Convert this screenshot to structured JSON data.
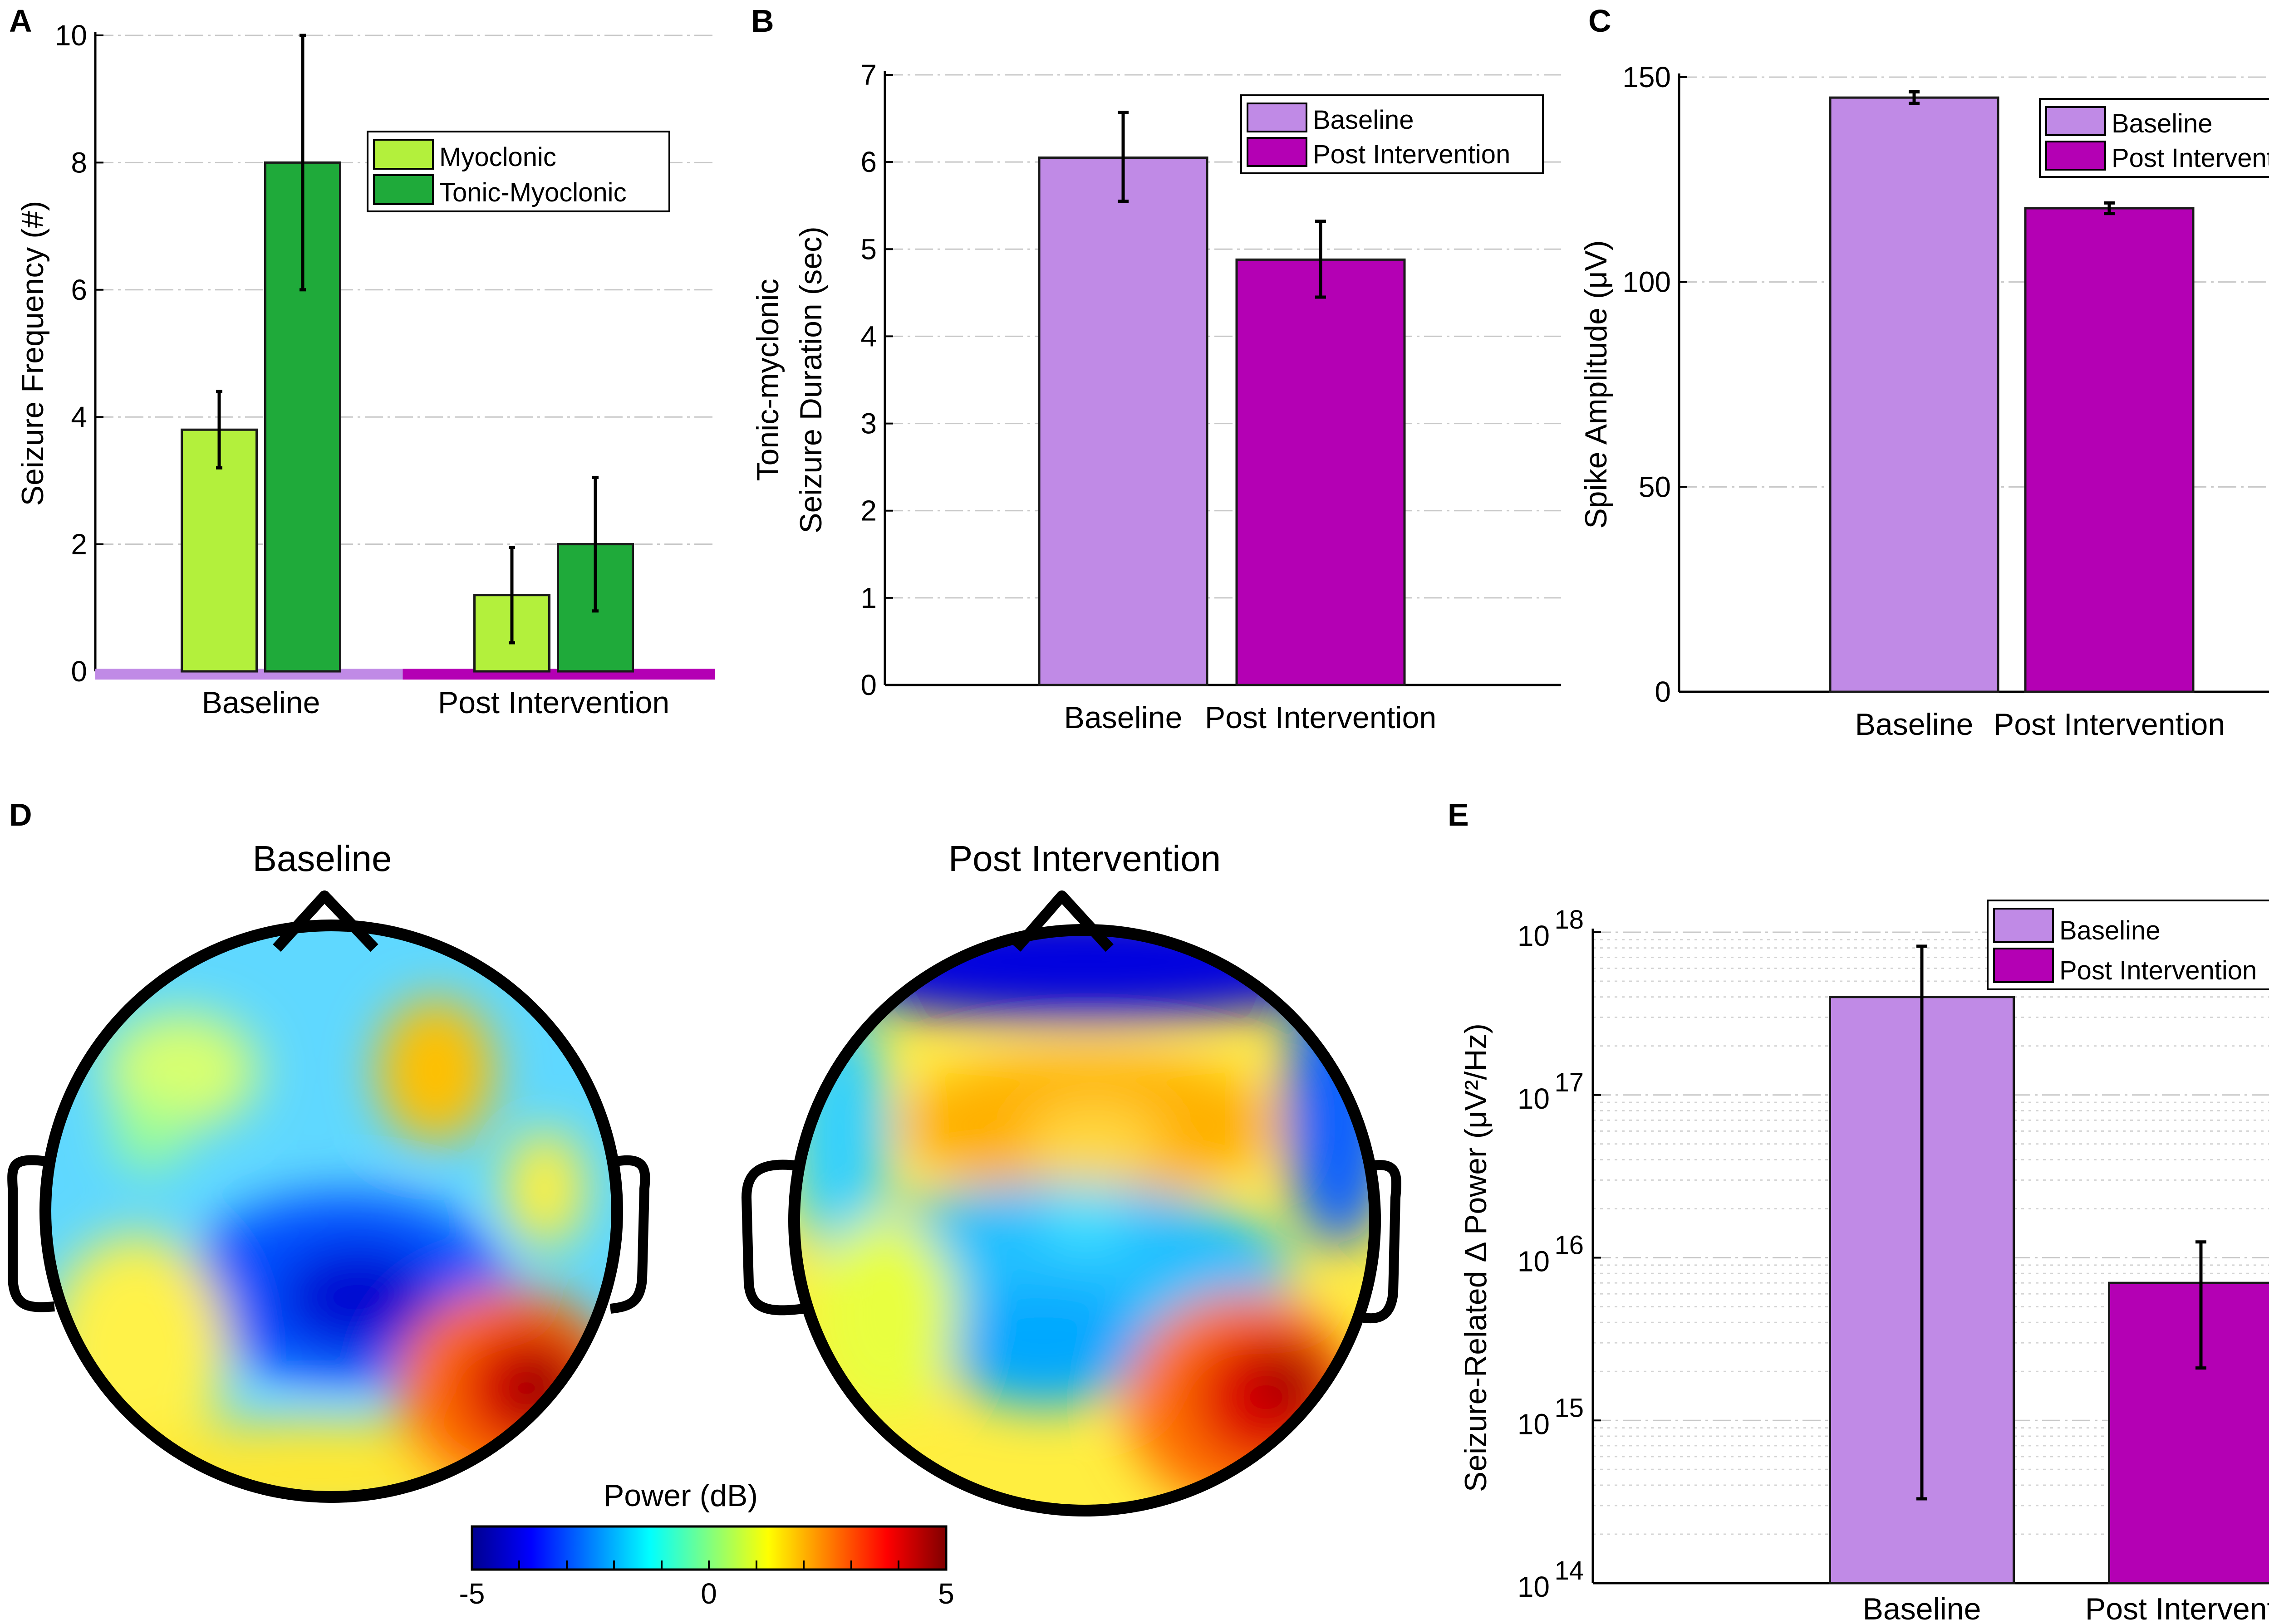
{
  "colors": {
    "myoclonic": "#b3f03c",
    "tonic_myoclonic": "#1faa3a",
    "baseline": "#c08ae6",
    "post": "#b400b4"
  },
  "chart_data": [
    {
      "panel": "A",
      "type": "bar",
      "ylabel": "Seizure Frequency (#)",
      "ylim": [
        0,
        10
      ],
      "yticks": [
        "0",
        "2",
        "4",
        "6",
        "8",
        "10"
      ],
      "categories": [
        "Baseline",
        "Post Intervention"
      ],
      "series": [
        {
          "name": "Myoclonic",
          "values": [
            3.8,
            1.2
          ],
          "err_low": [
            3.2,
            0.45
          ],
          "err_high": [
            4.4,
            1.95
          ]
        },
        {
          "name": "Tonic-Myoclonic",
          "values": [
            8.0,
            2.0
          ],
          "err_low": [
            6.0,
            0.95
          ],
          "err_high": [
            10.0,
            3.05
          ]
        }
      ],
      "legend": "top-right"
    },
    {
      "panel": "B",
      "type": "bar",
      "ylabel_line1": "Tonic-myclonic",
      "ylabel_line2": "Seizure Duration (sec)",
      "ylim": [
        0,
        7
      ],
      "yticks": [
        "0",
        "1",
        "2",
        "3",
        "4",
        "5",
        "6",
        "7"
      ],
      "categories": [
        "Baseline",
        "Post Intervention"
      ],
      "values": [
        6.05,
        4.88
      ],
      "err_low": [
        5.55,
        4.45
      ],
      "err_high": [
        6.57,
        5.32
      ],
      "legend_entries": [
        "Baseline",
        "Post Intervention"
      ],
      "legend": "top-right"
    },
    {
      "panel": "C",
      "type": "bar",
      "ylabel": "Spike Amplitude (μV)",
      "ylim": [
        0,
        150
      ],
      "yticks": [
        "0",
        "50",
        "100",
        "150"
      ],
      "categories": [
        "Baseline",
        "Post Intervention"
      ],
      "values": [
        145,
        118
      ],
      "err_low": [
        143.6,
        116.7
      ],
      "err_high": [
        146.4,
        119.3
      ],
      "legend_entries": [
        "Baseline",
        "Post Intervention"
      ],
      "legend": "top-right"
    },
    {
      "panel": "E",
      "type": "bar",
      "yscale": "log",
      "ylabel": "Seizure-Related Δ Power (μV²/Hz)",
      "ylim": [
        100000000000000.0,
        1e+18
      ],
      "ytick_exponents": [
        "14",
        "15",
        "16",
        "17",
        "18"
      ],
      "ytick_base": "10",
      "categories": [
        "Baseline",
        "Post Intervention"
      ],
      "values": [
        4e+17,
        7000000000000000.0
      ],
      "err_low": [
        330000000000000.0,
        2100000000000000.0
      ],
      "err_high": [
        8.2e+17,
        1.25e+16
      ],
      "legend_entries": [
        "Baseline",
        "Post Intervention"
      ],
      "legend": "top-right"
    }
  ],
  "panel_d": {
    "letter": "D",
    "title_left": "Baseline",
    "title_right": "Post Intervention",
    "colorbar_label": "Power (dB)",
    "colorbar_min": "-5",
    "colorbar_mid": "0",
    "colorbar_max": "5",
    "colormap": "jet"
  },
  "panel_letters": {
    "a": "A",
    "b": "B",
    "c": "C",
    "e": "E"
  }
}
